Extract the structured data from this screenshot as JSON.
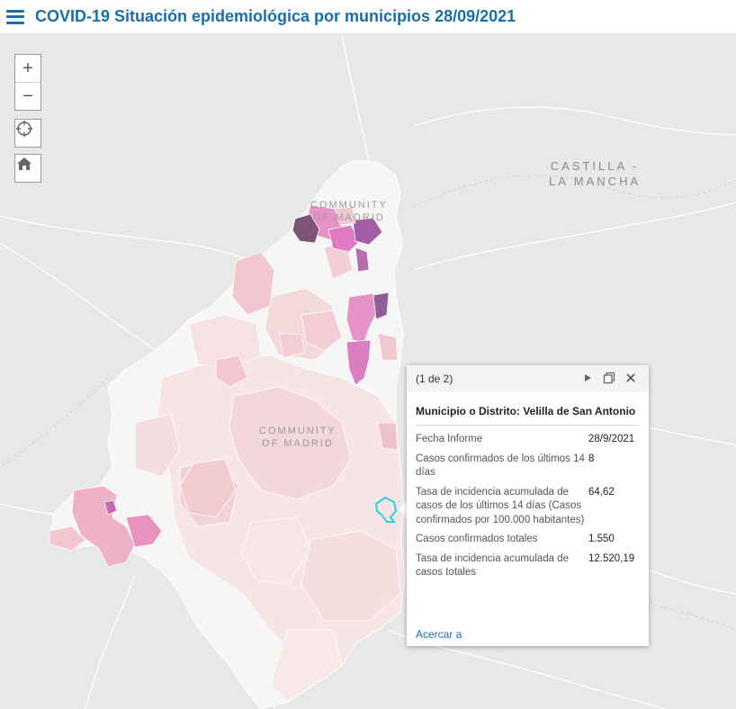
{
  "header": {
    "title": "COVID-19 Situación epidemiológica por municipios 28/09/2021"
  },
  "map": {
    "labels": {
      "castilla": [
        "CASTILLA -",
        "LA MANCHA"
      ],
      "community_top": [
        "COMMUNITY",
        "OF MADRID"
      ],
      "community_center": [
        "COMMUNITY",
        "OF MADRID"
      ]
    },
    "colors": {
      "base": "#e8e8e8",
      "region_outline": "#f6f6f6",
      "pale": "#f7e4e4",
      "light_pink": "#f2c7cf",
      "pink": "#e891c2",
      "magenta": "#c765b5",
      "purple": "#9b5a9b",
      "dark_purple": "#7d5378",
      "highlight": "#22d3e6"
    }
  },
  "controls": {
    "zoom_in": "+",
    "zoom_out": "−",
    "locate_icon": "locate-icon",
    "home_icon": "home-icon"
  },
  "popup": {
    "count": "(1 de 2)",
    "title": "Municipio o Distrito: Velilla de San Antonio",
    "fields": [
      {
        "label": "Fecha Informe",
        "value": "28/9/2021"
      },
      {
        "label": "Casos confirmados de los últimos 14 días",
        "value": "8"
      },
      {
        "label": "Tasa de incidencia acumulada de casos de los últimos 14 días (Casos confirmados por 100.000 habitantes)",
        "value": "64,62"
      },
      {
        "label": "Casos confirmados totales",
        "value": "1.550"
      },
      {
        "label": "Tasa de incidencia acumulada de casos totales",
        "value": "12.520,19"
      }
    ],
    "zoom_link": "Acercar a",
    "next_icon": "play-icon",
    "dock_icon": "dock-icon",
    "close_icon": "close-icon"
  }
}
